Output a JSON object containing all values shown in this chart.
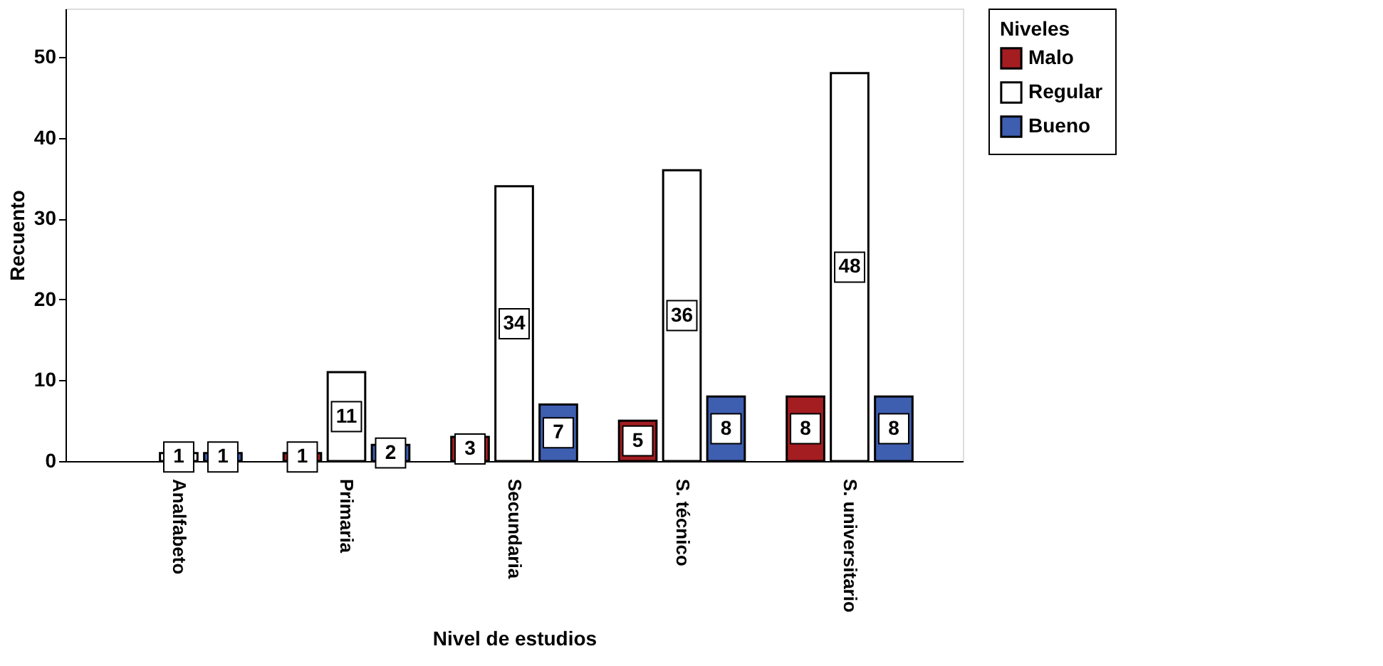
{
  "chart_data": {
    "type": "bar",
    "xlabel": "Nivel de estudios",
    "ylabel": "Recuento",
    "legend_title": "Niveles",
    "categories": [
      "Analfabeto",
      "Primaria",
      "Secundaria",
      "S. técnico",
      "S. universitario"
    ],
    "series": [
      {
        "name": "Malo",
        "color": "#a31d21",
        "values": [
          null,
          1,
          3,
          5,
          8
        ]
      },
      {
        "name": "Regular",
        "color": "#ffffff",
        "values": [
          1,
          11,
          34,
          36,
          48
        ]
      },
      {
        "name": "Bueno",
        "color": "#3e5eb0",
        "values": [
          1,
          2,
          7,
          8,
          8
        ]
      }
    ],
    "ylim": [
      0,
      56
    ],
    "yticks": [
      0,
      10,
      20,
      30,
      40,
      50
    ],
    "grid": false,
    "legend": "top right",
    "data_labels": true
  }
}
